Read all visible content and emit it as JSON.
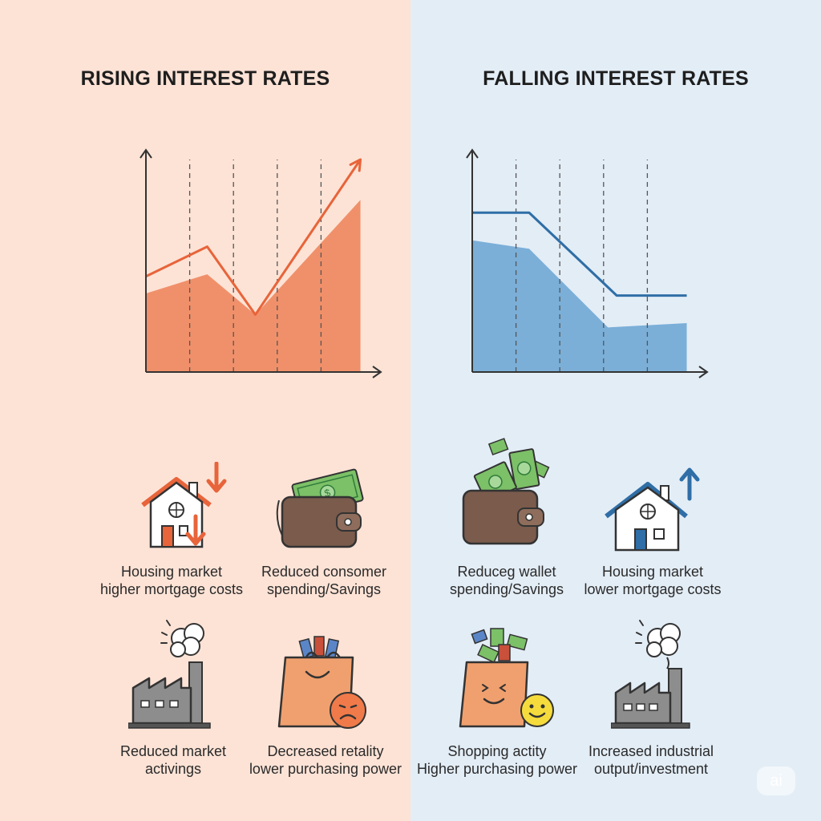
{
  "left": {
    "title": "RISING INTEREST RATES",
    "colors": {
      "background": "#fde3d6",
      "accent": "#e8643a",
      "area": "#f0906a"
    },
    "chart_data": {
      "type": "area",
      "title": "",
      "xlabel": "",
      "ylabel": "",
      "x_divisions": 5,
      "ylim": [
        0,
        10
      ],
      "grid": "vertical-dashed",
      "series": [
        {
          "style": "line-arrow",
          "x": [
            0,
            1.4,
            2.5,
            4.9
          ],
          "y": [
            4.5,
            5.9,
            2.7,
            10.0
          ]
        },
        {
          "style": "area",
          "x": [
            0,
            1.4,
            2.5,
            4.9
          ],
          "y": [
            3.7,
            4.6,
            2.7,
            8.1
          ]
        }
      ]
    },
    "items": [
      {
        "icon": "house-down-arrows-icon",
        "line1": "Housing market",
        "line2": "higher mortgage costs"
      },
      {
        "icon": "wallet-cash-icon",
        "line1": "Reduced consomer",
        "line2": "spending/Savings"
      },
      {
        "icon": "factory-smoke-icon",
        "line1": "Reduced market",
        "line2": "activings"
      },
      {
        "icon": "shopping-bag-sad-icon",
        "line1": "Decreased retality",
        "line2": "lower purchasing power"
      }
    ]
  },
  "right": {
    "title": "FALLING INTEREST RATES",
    "colors": {
      "background": "#e3edf6",
      "accent": "#2f6ea6",
      "area": "#7bafd8"
    },
    "chart_data": {
      "type": "area",
      "title": "",
      "xlabel": "",
      "ylabel": "",
      "x_divisions": 5,
      "ylim": [
        0,
        10
      ],
      "grid": "vertical-dashed",
      "series": [
        {
          "style": "line",
          "x": [
            0,
            1.3,
            3.3,
            4.9
          ],
          "y": [
            7.5,
            7.5,
            3.6,
            3.6
          ]
        },
        {
          "style": "area",
          "x": [
            0,
            1.3,
            3.1,
            4.9
          ],
          "y": [
            6.2,
            5.8,
            2.1,
            2.3
          ]
        }
      ]
    },
    "items": [
      {
        "icon": "wallet-flying-cash-icon",
        "line1": "Reduceg wallet",
        "line2": "spending/Savings"
      },
      {
        "icon": "house-up-arrow-icon",
        "line1": "Housing market",
        "line2": "lower mortgage costs"
      },
      {
        "icon": "shopping-bag-happy-icon",
        "line1": "Shopping actity",
        "line2": "Higher purchasing power"
      },
      {
        "icon": "factory-smoke-icon",
        "line1": "Increased industrial",
        "line2": "output/investment"
      }
    ]
  },
  "badge": {
    "text": "ai"
  }
}
